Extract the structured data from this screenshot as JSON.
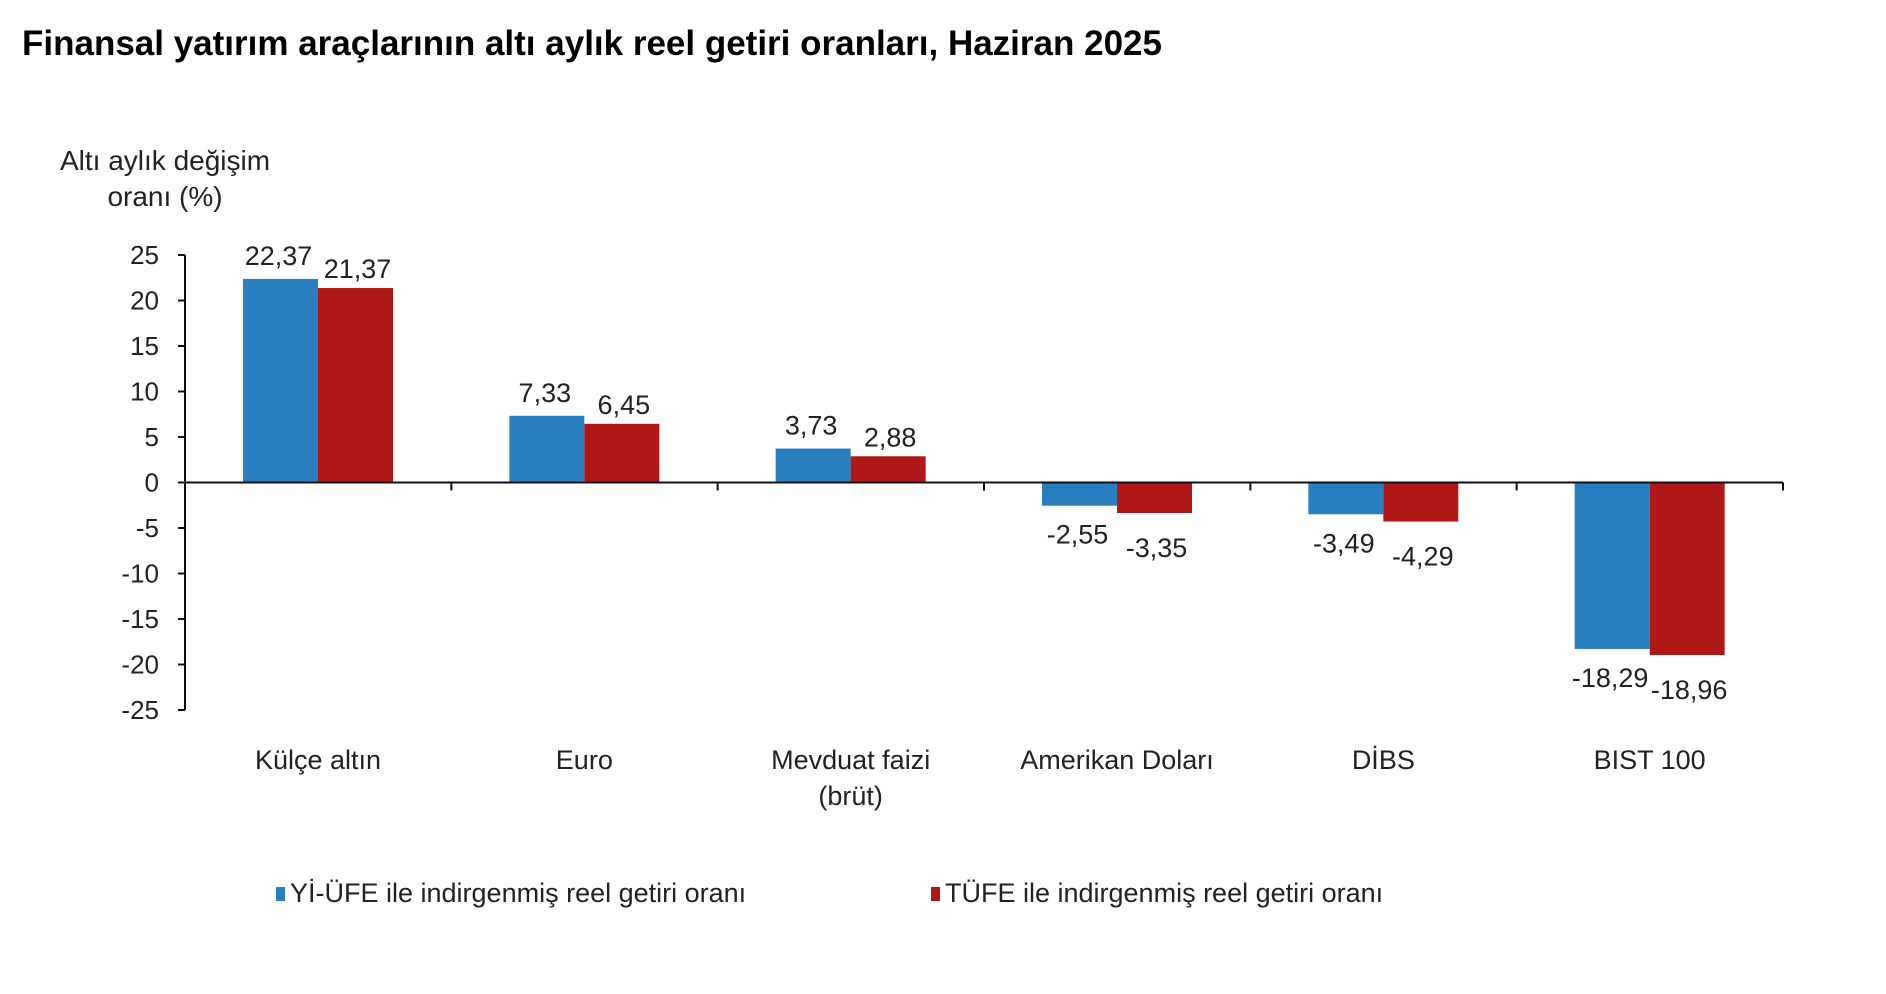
{
  "title": "Finansal yatırım araçlarının altı aylık reel getiri oranları, Haziran 2025",
  "chart_data": {
    "type": "bar",
    "title": "Finansal yatırım araçlarının altı aylık reel getiri oranları, Haziran 2025",
    "ylabel_lines": [
      "Altı aylık değişim",
      "oranı (%)"
    ],
    "xlabel": "",
    "ylim": [
      -25,
      25
    ],
    "yticks": [
      25,
      20,
      15,
      10,
      5,
      0,
      -5,
      -10,
      -15,
      -20,
      -25
    ],
    "grid": false,
    "legend_position": "bottom",
    "categories": [
      [
        "Külçe altın"
      ],
      [
        "Euro"
      ],
      [
        "Mevduat faizi",
        "(brüt)"
      ],
      [
        "Amerikan Doları"
      ],
      [
        "DİBS"
      ],
      [
        "BIST 100"
      ]
    ],
    "series": [
      {
        "name": "Yİ-ÜFE ile indirgenmiş reel getiri oranı",
        "color": "#2a7fc1",
        "values": [
          22.37,
          7.33,
          3.73,
          -2.55,
          -3.49,
          -18.29
        ],
        "labels": [
          "22,37",
          "7,33",
          "3,73",
          "-2,55",
          "-3,49",
          "-18,29"
        ]
      },
      {
        "name": "TÜFE ile indirgenmiş reel getiri oranı",
        "color": "#b01818",
        "values": [
          21.37,
          6.45,
          2.88,
          -3.35,
          -4.29,
          -18.96
        ],
        "labels": [
          "21,37",
          "6,45",
          "2,88",
          "-3,35",
          "-4,29",
          "-18,96"
        ]
      }
    ]
  }
}
